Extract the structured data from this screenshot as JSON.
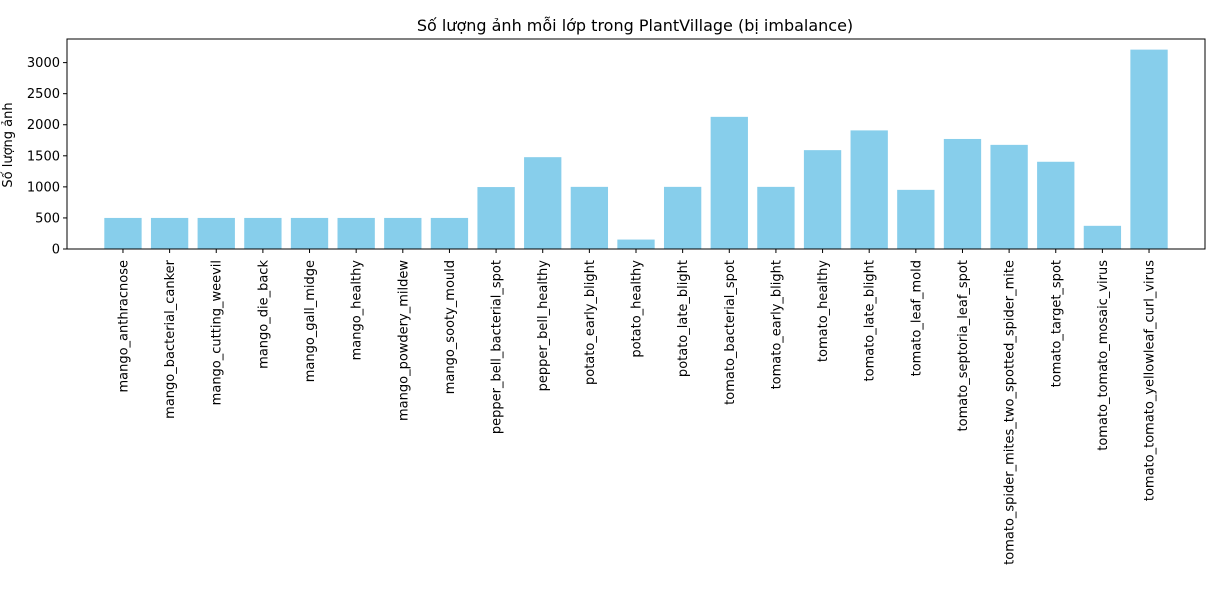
{
  "chart_data": {
    "type": "bar",
    "title": "Số lượng ảnh mỗi lớp trong PlantVillage (bị imbalance)",
    "xlabel": "",
    "ylabel": "Số lượng ảnh",
    "ylim": [
      0,
      3380
    ],
    "yticks": [
      0,
      500,
      1000,
      1500,
      2000,
      2500,
      3000
    ],
    "grid": false,
    "bar_color": "#87CEEB",
    "categories": [
      "mango_anthracnose",
      "mango_bacterial_canker",
      "mango_cutting_weevil",
      "mango_die_back",
      "mango_gall_midge",
      "mango_healthy",
      "mango_powdery_mildew",
      "mango_sooty_mould",
      "pepper_bell_bacterial_spot",
      "pepper_bell_healthy",
      "potato_early_blight",
      "potato_healthy",
      "potato_late_blight",
      "tomato_bacterial_spot",
      "tomato_early_blight",
      "tomato_healthy",
      "tomato_late_blight",
      "tomato_leaf_mold",
      "tomato_septoria_leaf_spot",
      "tomato_spider_mites_two_spotted_spider_mite",
      "tomato_target_spot",
      "tomato_tomato_mosaic_virus",
      "tomato_tomato_yellowleaf_curl_virus"
    ],
    "values": [
      500,
      500,
      500,
      500,
      500,
      500,
      500,
      500,
      997,
      1478,
      1000,
      152,
      1000,
      2127,
      1000,
      1591,
      1909,
      952,
      1771,
      1676,
      1404,
      373,
      3209
    ]
  }
}
